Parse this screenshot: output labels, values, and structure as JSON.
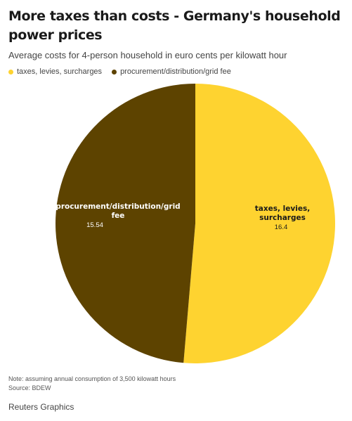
{
  "chart_data": {
    "type": "pie",
    "title": "More taxes than costs - Germany's household power prices",
    "subtitle": "Average costs for 4-person household in euro cents per kilowatt hour",
    "categories": [
      "taxes, levies, surcharges",
      "procurement/distribution/grid fee"
    ],
    "values": [
      16.4,
      15.54
    ],
    "value_labels": [
      "16.4",
      "15.54"
    ],
    "colors": [
      "#fed330",
      "#5d4300"
    ],
    "label_colors": [
      "#1a1a1a",
      "#ffffff"
    ],
    "legend_position": "top-left",
    "note": "Note: assuming annual consumption of 3,500 kilowatt hours",
    "source": "Source: BDEW"
  },
  "footer": {
    "credit": "Reuters Graphics"
  }
}
